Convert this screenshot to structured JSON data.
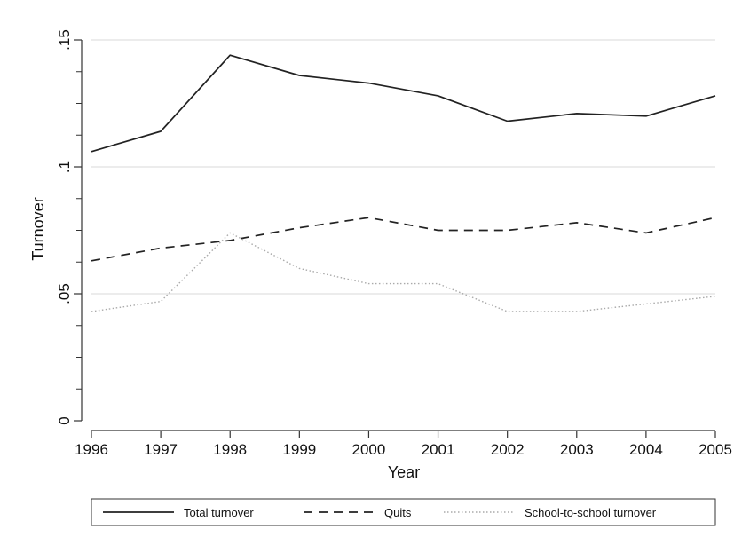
{
  "chart_data": {
    "type": "line",
    "title": "",
    "xlabel": "Year",
    "ylabel": "Turnover",
    "x": [
      1996,
      1997,
      1998,
      1999,
      2000,
      2001,
      2002,
      2003,
      2004,
      2005
    ],
    "xticks": [
      "1996",
      "1997",
      "1998",
      "1999",
      "2000",
      "2001",
      "2002",
      "2003",
      "2004",
      "2005"
    ],
    "yticks": [
      {
        "value": 0,
        "label": "0"
      },
      {
        "value": 0.05,
        "label": ".05"
      },
      {
        "value": 0.1,
        "label": ".1"
      },
      {
        "value": 0.15,
        "label": ".15"
      }
    ],
    "ylim": [
      0,
      0.15
    ],
    "xlim": [
      1996,
      2005
    ],
    "grid": "horizontal",
    "legend_position": "bottom",
    "series": [
      {
        "name": "Total turnover",
        "style": "solid",
        "color": "#222222",
        "values": [
          0.106,
          0.114,
          0.144,
          0.136,
          0.133,
          0.128,
          0.118,
          0.121,
          0.12,
          0.128
        ]
      },
      {
        "name": "Quits",
        "style": "dashed",
        "color": "#222222",
        "values": [
          0.063,
          0.068,
          0.071,
          0.076,
          0.08,
          0.075,
          0.075,
          0.078,
          0.074,
          0.08
        ]
      },
      {
        "name": "School-to-school turnover",
        "style": "dotted",
        "color": "#aaaaaa",
        "values": [
          0.043,
          0.047,
          0.074,
          0.06,
          0.054,
          0.054,
          0.043,
          0.043,
          0.046,
          0.049
        ]
      }
    ]
  }
}
